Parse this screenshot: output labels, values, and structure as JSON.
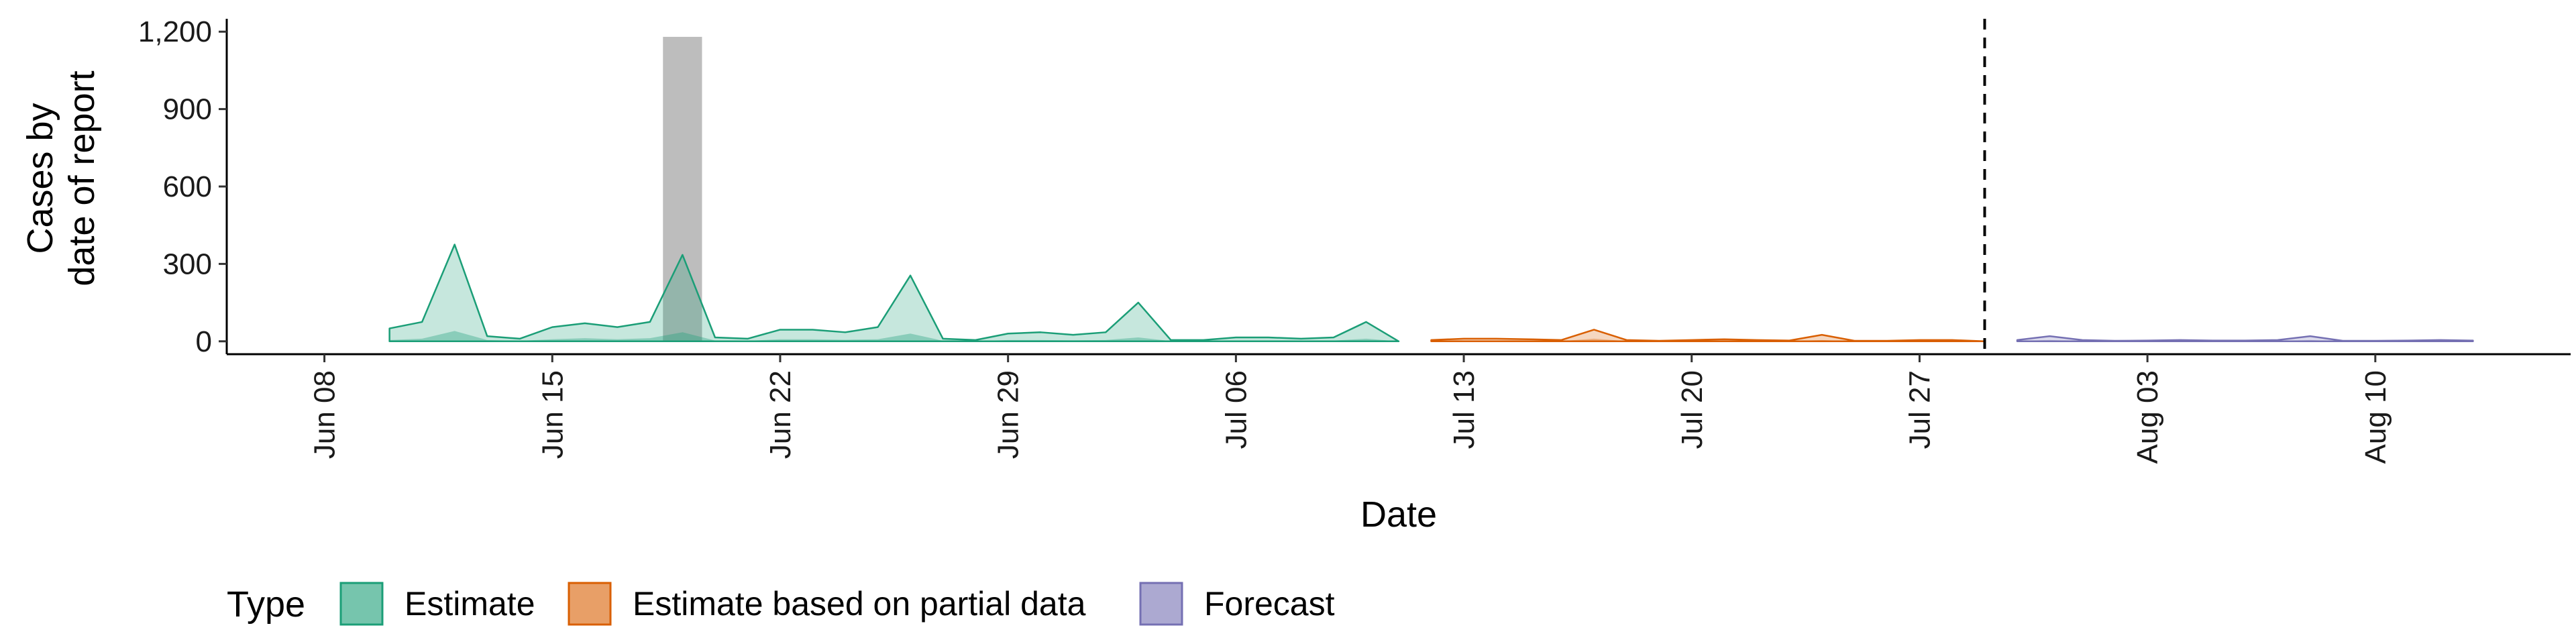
{
  "chart_data": {
    "type": "area",
    "xlabel": "Date",
    "ylabel_lines": [
      "Cases by",
      "date of report"
    ],
    "ylim": [
      -50,
      1250
    ],
    "xlim": [
      "2020-06-05",
      "2020-08-16"
    ],
    "y_ticks": [
      0,
      300,
      600,
      900,
      1200
    ],
    "y_tick_labels": [
      "0",
      "300",
      "600",
      "900",
      "1,200"
    ],
    "x_ticks": [
      "2020-06-08",
      "2020-06-15",
      "2020-06-22",
      "2020-06-29",
      "2020-07-06",
      "2020-07-13",
      "2020-07-20",
      "2020-07-27",
      "2020-08-03",
      "2020-08-10"
    ],
    "x_tick_labels": [
      "Jun 08",
      "Jun 15",
      "Jun 22",
      "Jun 29",
      "Jul 06",
      "Jul 13",
      "Jul 20",
      "Jul 27",
      "Aug 03",
      "Aug 10"
    ],
    "forecast_date": "2020-07-29",
    "reported_cases": [
      {
        "date": "2020-06-19",
        "value": 1180
      }
    ],
    "legend": {
      "title": "Type",
      "position": "bottom"
    },
    "series": [
      {
        "name": "Estimate",
        "color": "#1b9e77",
        "dates": [
          "2020-06-10",
          "2020-06-11",
          "2020-06-12",
          "2020-06-13",
          "2020-06-14",
          "2020-06-15",
          "2020-06-16",
          "2020-06-17",
          "2020-06-18",
          "2020-06-19",
          "2020-06-20",
          "2020-06-21",
          "2020-06-22",
          "2020-06-23",
          "2020-06-24",
          "2020-06-25",
          "2020-06-26",
          "2020-06-27",
          "2020-06-28",
          "2020-06-29",
          "2020-06-30",
          "2020-07-01",
          "2020-07-02",
          "2020-07-03",
          "2020-07-04",
          "2020-07-05",
          "2020-07-06",
          "2020-07-07",
          "2020-07-08",
          "2020-07-09",
          "2020-07-10",
          "2020-07-11"
        ],
        "upper": [
          50,
          75,
          375,
          20,
          10,
          55,
          70,
          55,
          75,
          335,
          15,
          10,
          45,
          45,
          35,
          55,
          255,
          10,
          5,
          30,
          35,
          25,
          35,
          150,
          5,
          5,
          15,
          15,
          10,
          15,
          75,
          0
        ],
        "median": [
          5,
          10,
          40,
          5,
          2,
          8,
          12,
          8,
          12,
          35,
          3,
          2,
          8,
          8,
          6,
          8,
          30,
          2,
          1,
          5,
          5,
          4,
          5,
          15,
          1,
          1,
          3,
          3,
          2,
          3,
          10,
          0
        ],
        "lower": [
          0,
          0,
          0,
          0,
          0,
          0,
          0,
          0,
          0,
          0,
          0,
          0,
          0,
          0,
          0,
          0,
          0,
          0,
          0,
          0,
          0,
          0,
          0,
          0,
          0,
          0,
          0,
          0,
          0,
          0,
          0,
          0
        ]
      },
      {
        "name": "Estimate based on partial data",
        "color": "#d95f02",
        "dates": [
          "2020-07-12",
          "2020-07-13",
          "2020-07-14",
          "2020-07-15",
          "2020-07-16",
          "2020-07-17",
          "2020-07-18",
          "2020-07-19",
          "2020-07-20",
          "2020-07-21",
          "2020-07-22",
          "2020-07-23",
          "2020-07-24",
          "2020-07-25",
          "2020-07-26",
          "2020-07-27",
          "2020-07-28",
          "2020-07-29"
        ],
        "upper": [
          5,
          10,
          10,
          8,
          5,
          45,
          5,
          2,
          5,
          8,
          5,
          3,
          25,
          2,
          2,
          5,
          5,
          0
        ],
        "median": [
          1,
          3,
          3,
          2,
          1,
          10,
          1,
          0,
          1,
          2,
          1,
          1,
          5,
          0,
          0,
          1,
          1,
          0
        ],
        "lower": [
          0,
          0,
          0,
          0,
          0,
          0,
          0,
          0,
          0,
          0,
          0,
          0,
          0,
          0,
          0,
          0,
          0,
          0
        ]
      },
      {
        "name": "Forecast",
        "color": "#7570b3",
        "dates": [
          "2020-07-30",
          "2020-07-31",
          "2020-08-01",
          "2020-08-02",
          "2020-08-03",
          "2020-08-04",
          "2020-08-05",
          "2020-08-06",
          "2020-08-07",
          "2020-08-08",
          "2020-08-09",
          "2020-08-10",
          "2020-08-11",
          "2020-08-12",
          "2020-08-13"
        ],
        "upper": [
          5,
          20,
          5,
          2,
          3,
          5,
          3,
          3,
          5,
          20,
          2,
          2,
          3,
          5,
          3
        ],
        "median": [
          1,
          5,
          1,
          0,
          1,
          1,
          1,
          1,
          1,
          5,
          0,
          0,
          1,
          1,
          1
        ],
        "lower": [
          0,
          0,
          0,
          0,
          0,
          0,
          0,
          0,
          0,
          0,
          0,
          0,
          0,
          0,
          0
        ]
      }
    ]
  }
}
